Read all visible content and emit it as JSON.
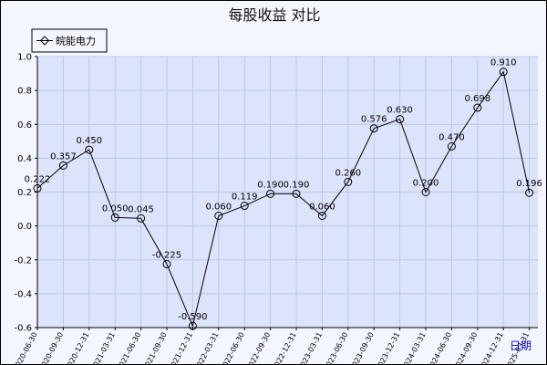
{
  "chart_data": {
    "type": "line",
    "title": "每股收益  对比",
    "xlabel": "日期",
    "ylabel": "",
    "ylim": [
      -0.6,
      1.0
    ],
    "yticks": [
      -0.6,
      -0.4,
      -0.2,
      0.0,
      0.2,
      0.4,
      0.6,
      0.8,
      1.0
    ],
    "ytick_labels": [
      "-0.6",
      "-0.4",
      "-0.2",
      "0.0",
      "0.2",
      "0.4",
      "0.6",
      "0.8",
      "1.0"
    ],
    "grid": true,
    "legend_position": "top-left",
    "categories": [
      "2020-06-30",
      "2020-09-30",
      "2020-12-31",
      "2021-03-31",
      "2021-06-30",
      "2021-09-30",
      "2021-12-31",
      "2022-03-31",
      "2022-06-30",
      "2022-09-30",
      "2022-12-31",
      "2023-03-31",
      "2023-06-30",
      "2023-09-30",
      "2023-12-31",
      "2024-03-31",
      "2024-06-30",
      "2024-09-30",
      "2024-12-31",
      "2025-03-31"
    ],
    "series": [
      {
        "name": "皖能电力",
        "color": "#000000",
        "marker": "circle",
        "values": [
          0.222,
          0.357,
          0.45,
          0.05,
          0.045,
          -0.225,
          -0.59,
          0.06,
          0.119,
          0.19,
          0.19,
          0.06,
          0.26,
          0.576,
          0.63,
          0.2,
          0.47,
          0.698,
          0.91,
          0.196
        ],
        "labels": [
          "0.222",
          "0.357",
          "0.450",
          "0.050",
          "0.045",
          "-0.225",
          "-0.590",
          "0.060",
          "0.119",
          "0.190",
          "0.190",
          "0.060",
          "0.260",
          "0.576",
          "0.630",
          "0.200",
          "0.470",
          "0.698",
          "0.910",
          "0.196"
        ]
      }
    ],
    "colors": {
      "plot_background": "#dde3fa",
      "page_background": "#f4f6ff",
      "grid": "#bcc6e8",
      "axis": "#000000",
      "xlabel": "#0000cc"
    }
  }
}
